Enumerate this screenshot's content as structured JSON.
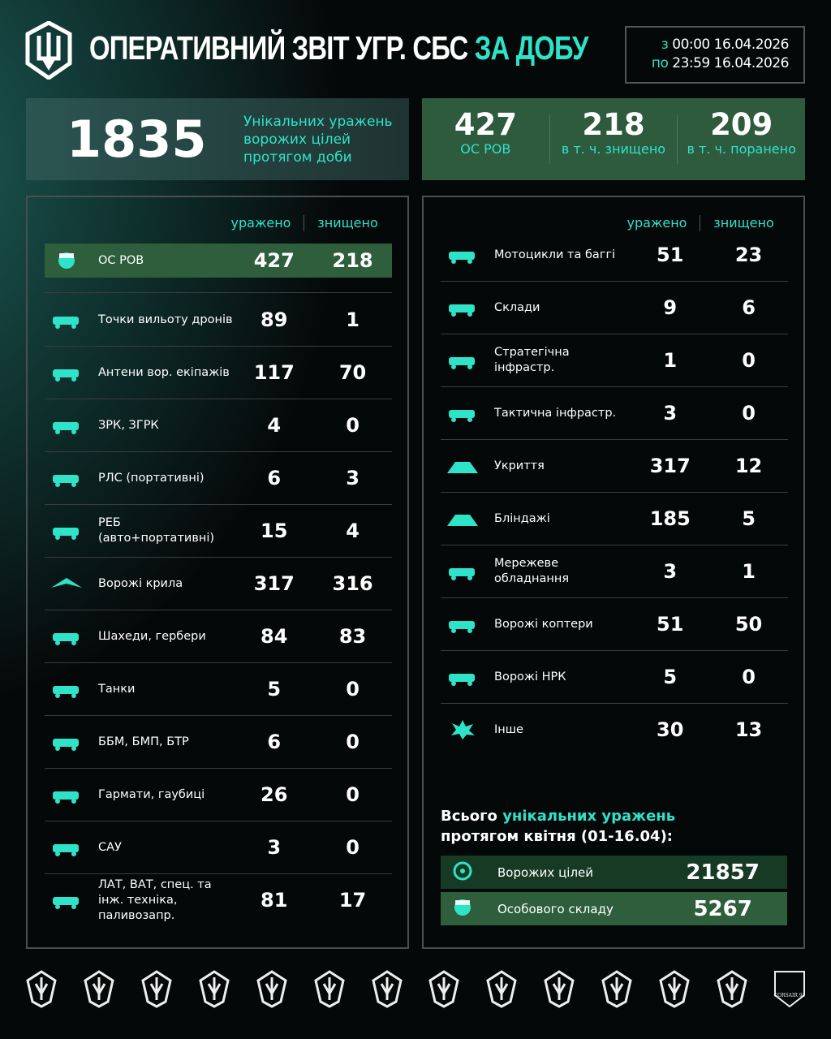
{
  "header": {
    "title_white": "ОПЕРАТИВНИЙ ЗВІТ УГР. СБС",
    "title_accent": "ЗА ДОБУ",
    "period": {
      "from_label": "з",
      "from_time": "00:00",
      "from_date": "16.04.2026",
      "to_label": "по",
      "to_time": "23:59",
      "to_date": "16.04.2026"
    }
  },
  "total": {
    "value": "1835",
    "label": "Унікальних уражень ворожих цілей протягом доби"
  },
  "personnel": [
    {
      "value": "427",
      "label": "ОС РОВ"
    },
    {
      "value": "218",
      "label": "в т. ч. знищено"
    },
    {
      "value": "209",
      "label": "в т. ч. поранено"
    }
  ],
  "columns": {
    "hit": "уражено",
    "destroyed": "знищено"
  },
  "left_rows": [
    {
      "icon": "soldier-icon",
      "name": "ОС РОВ",
      "hit": "427",
      "destroyed": "218",
      "highlight": true
    },
    {
      "icon": "drone-launch-point-icon",
      "name": "Точки вильоту дронів",
      "hit": "89",
      "destroyed": "1"
    },
    {
      "icon": "antenna-icon",
      "name": "Антени вор. екіпажів",
      "hit": "117",
      "destroyed": "70"
    },
    {
      "icon": "sam-launcher-icon",
      "name": "ЗРК, ЗГРК",
      "hit": "4",
      "destroyed": "0"
    },
    {
      "icon": "radar-icon",
      "name": "РЛС (портативні)",
      "hit": "6",
      "destroyed": "3"
    },
    {
      "icon": "ew-vehicle-icon",
      "name": "РЕБ (авто+портативні)",
      "hit": "15",
      "destroyed": "4"
    },
    {
      "icon": "fixed-wing-drone-icon",
      "name": "Ворожі крила",
      "hit": "317",
      "destroyed": "316"
    },
    {
      "icon": "shahed-icon",
      "name": "Шахеди, гербери",
      "hit": "84",
      "destroyed": "83"
    },
    {
      "icon": "tank-icon",
      "name": "Танки",
      "hit": "5",
      "destroyed": "0"
    },
    {
      "icon": "apc-icon",
      "name": "ББМ, БМП, БТР",
      "hit": "6",
      "destroyed": "0"
    },
    {
      "icon": "artillery-icon",
      "name": "Гармати, гаубиці",
      "hit": "26",
      "destroyed": "0"
    },
    {
      "icon": "spg-icon",
      "name": "САУ",
      "hit": "3",
      "destroyed": "0"
    },
    {
      "icon": "truck-icon",
      "name": "ЛАТ, ВАТ, спец. та інж. техніка, паливозапр.",
      "hit": "81",
      "destroyed": "17"
    }
  ],
  "right_rows": [
    {
      "icon": "motorcycle-icon",
      "name": "Мотоцикли та баггі",
      "hit": "51",
      "destroyed": "23"
    },
    {
      "icon": "warehouse-icon",
      "name": "Склади",
      "hit": "9",
      "destroyed": "6"
    },
    {
      "icon": "factory-icon",
      "name": "Стратегічна інфрастр.",
      "hit": "1",
      "destroyed": "0"
    },
    {
      "icon": "tactical-infra-icon",
      "name": "Тактична інфрастр.",
      "hit": "3",
      "destroyed": "0"
    },
    {
      "icon": "shelter-icon",
      "name": "Укриття",
      "hit": "317",
      "destroyed": "12"
    },
    {
      "icon": "dugout-icon",
      "name": "Бліндажі",
      "hit": "185",
      "destroyed": "5"
    },
    {
      "icon": "network-equipment-icon",
      "name": "Мережеве обладнання",
      "hit": "3",
      "destroyed": "1"
    },
    {
      "icon": "quadcopter-icon",
      "name": "Ворожі коптери",
      "hit": "51",
      "destroyed": "50"
    },
    {
      "icon": "ugv-icon",
      "name": "Ворожі НРК",
      "hit": "5",
      "destroyed": "0"
    },
    {
      "icon": "explosion-icon",
      "name": "Інше",
      "hit": "30",
      "destroyed": "13"
    }
  ],
  "month_summary": {
    "title_white": "Всього",
    "title_accent": "унікальних уражень",
    "title_line2": "протягом квітня (01-16.04):",
    "rows": [
      {
        "icon": "target-icon",
        "name": "Ворожих цілей",
        "value": "21857",
        "color": "#173a25"
      },
      {
        "icon": "soldier-icon",
        "name": "Особового складу",
        "value": "5267",
        "color": "#2e5e3c"
      }
    ]
  },
  "unit_logos": [
    "unit-logo-1",
    "unit-logo-2",
    "unit-logo-3",
    "unit-logo-4",
    "unit-logo-5",
    "unit-logo-6",
    "unit-logo-7",
    "unit-logo-8",
    "unit-logo-9",
    "unit-logo-10",
    "unit-logo-11",
    "unit-logo-12",
    "unit-logo-13",
    "corsair-91-logo"
  ],
  "logo_text": {
    "corsair": "CORSAIR 91"
  },
  "colors": {
    "accent": "#2fe3c9",
    "panel_green": "#2e5a3e",
    "dark_green": "#173a25"
  }
}
